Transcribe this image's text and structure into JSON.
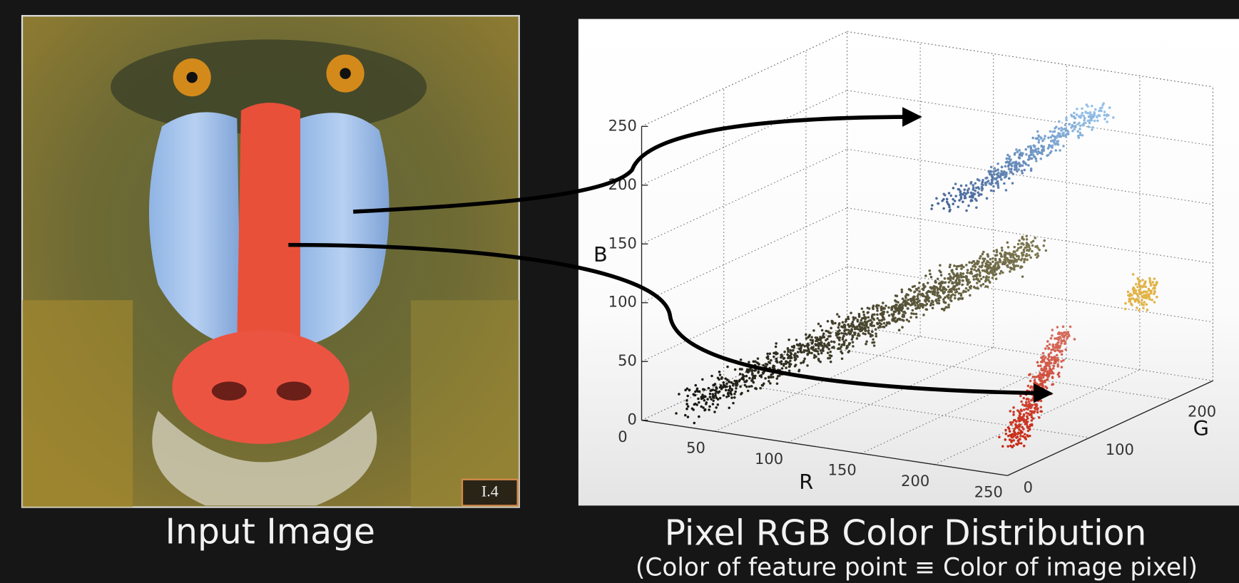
{
  "image": {
    "caption": "Input Image",
    "badge": "I.4"
  },
  "plot": {
    "title": "Pixel RGB Color Distribution",
    "subtitle": "(Color of feature point ≡ Color of image pixel)",
    "axes": {
      "r": {
        "label": "R",
        "ticks": [
          0,
          50,
          100,
          150,
          200,
          250
        ]
      },
      "g": {
        "label": "G",
        "ticks": [
          0,
          100,
          200
        ]
      },
      "b": {
        "label": "B",
        "ticks": [
          0,
          50,
          100,
          150,
          200,
          250
        ]
      }
    }
  }
}
